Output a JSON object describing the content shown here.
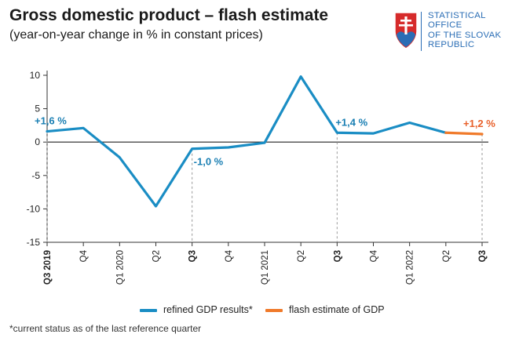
{
  "header": {
    "title": "Gross domestic product – flash estimate",
    "subtitle": "(year-on-year change in % in constant prices)"
  },
  "logo": {
    "lines": [
      "STATISTICAL",
      "OFFICE",
      "OF THE SLOVAK",
      "REPUBLIC"
    ]
  },
  "footnote": "*current status as of the last reference quarter",
  "colors": {
    "refined": "#1a8dc4",
    "flash": "#f07a2a",
    "annotation_refined": "#1a7fb3",
    "annotation_flash": "#e8602a",
    "logo_blue": "#2a6db5",
    "logo_red": "#d62b2b"
  },
  "chart_data": {
    "type": "line",
    "title": "Gross domestic product – flash estimate",
    "subtitle": "(year-on-year change in % in constant prices)",
    "xlabel": "",
    "ylabel": "",
    "categories": [
      "Q3 2019",
      "Q4",
      "Q1 2020",
      "Q2",
      "Q3",
      "Q4",
      "Q1 2021",
      "Q2",
      "Q3",
      "Q4",
      "Q1 2022",
      "Q2",
      "Q3"
    ],
    "bold_categories": [
      "Q3 2019",
      "Q3",
      "Q3",
      "Q3"
    ],
    "ylim": [
      -15,
      10
    ],
    "yticks": [
      -15,
      -10,
      -5,
      0,
      5,
      10
    ],
    "grid": false,
    "legend_position": "bottom",
    "series": [
      {
        "name": "refined GDP results*",
        "values": [
          1.6,
          2.1,
          -2.3,
          -9.6,
          -1.0,
          -0.8,
          -0.1,
          9.8,
          1.4,
          1.3,
          2.9,
          1.4,
          null
        ]
      },
      {
        "name": "flash estimate of GDP",
        "values": [
          null,
          null,
          null,
          null,
          null,
          null,
          null,
          null,
          null,
          null,
          null,
          1.4,
          1.2
        ]
      }
    ],
    "annotations": [
      {
        "text": "+1,6 %",
        "category_index": 0,
        "value": 1.6,
        "series": "refined"
      },
      {
        "text": "-1,0 %",
        "category_index": 4,
        "value": -1.0,
        "series": "refined"
      },
      {
        "text": "+1,4 %",
        "category_index": 8,
        "value": 1.4,
        "series": "refined"
      },
      {
        "text": "+1,2 %",
        "category_index": 12,
        "value": 1.2,
        "series": "flash"
      }
    ],
    "dashed_marker_indices": [
      0,
      4,
      8,
      12
    ]
  }
}
